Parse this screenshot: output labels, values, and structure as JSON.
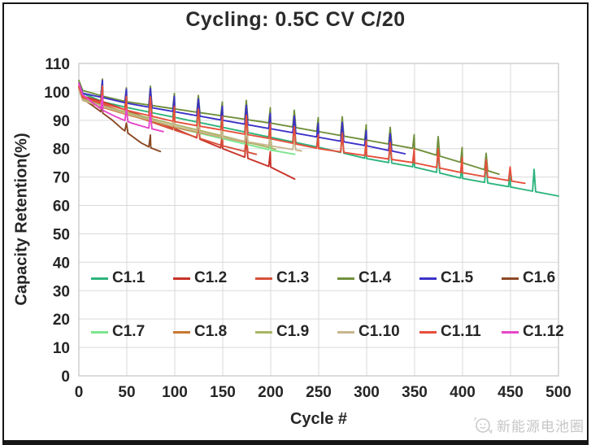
{
  "title": "Cycling: 0.5C CV C/20",
  "watermark": {
    "text": "新能源电池圈"
  },
  "style": {
    "grid_color": "#d9d9d9",
    "plot_border_color": "#c4c4c4",
    "axis_text_color": "#262626",
    "frame_color": "#161616",
    "watermark_color": "#c6c6c6"
  },
  "chart_data": {
    "type": "line",
    "title": "Cycling: 0.5C CV C/20",
    "xlabel": "Cycle #",
    "ylabel": "Capacity Retention(%)",
    "xlim": [
      0,
      500
    ],
    "ylim": [
      0,
      110
    ],
    "x_ticks": [
      0,
      50,
      100,
      150,
      200,
      250,
      300,
      350,
      400,
      450,
      500
    ],
    "y_ticks": [
      0,
      10,
      20,
      30,
      40,
      50,
      60,
      70,
      80,
      90,
      100,
      110
    ],
    "grid": true,
    "legend_position": "inside lower-left, two rows of six",
    "checkup_spike_interval_cycles": 25,
    "note": "Capacity fade curves with periodic C/20 check-up spikes every ~25 cycles",
    "series": [
      {
        "name": "C1.1",
        "color": "#2eb47e",
        "spike_height": 7,
        "points": [
          [
            0,
            103
          ],
          [
            4,
            99.5
          ],
          [
            25,
            96.5
          ],
          [
            50,
            94.5
          ],
          [
            100,
            91
          ],
          [
            150,
            87.5
          ],
          [
            200,
            84
          ],
          [
            250,
            80.5
          ],
          [
            300,
            76.5
          ],
          [
            350,
            73.5
          ],
          [
            400,
            69.5
          ],
          [
            450,
            66.5
          ],
          [
            500,
            63.3
          ]
        ]
      },
      {
        "name": "C1.2",
        "color": "#c83228",
        "spike_height": 6,
        "points": [
          [
            0,
            102
          ],
          [
            4,
            98.5
          ],
          [
            25,
            96.5
          ],
          [
            50,
            93.5
          ],
          [
            100,
            87
          ],
          [
            150,
            80
          ],
          [
            200,
            73.5
          ],
          [
            225,
            69.3
          ]
        ]
      },
      {
        "name": "C1.3",
        "color": "#d8503c",
        "spike_height": 5,
        "points": [
          [
            0,
            101.5
          ],
          [
            4,
            98
          ],
          [
            25,
            95.5
          ],
          [
            50,
            92.5
          ],
          [
            100,
            86.5
          ],
          [
            150,
            81
          ],
          [
            185,
            78
          ]
        ]
      },
      {
        "name": "C1.4",
        "color": "#71903c",
        "spike_height": 6,
        "points": [
          [
            0,
            104
          ],
          [
            4,
            100.5
          ],
          [
            25,
            98.5
          ],
          [
            50,
            96.5
          ],
          [
            100,
            94
          ],
          [
            150,
            91.5
          ],
          [
            200,
            89
          ],
          [
            250,
            86
          ],
          [
            300,
            83
          ],
          [
            350,
            80
          ],
          [
            400,
            75
          ],
          [
            438,
            71
          ]
        ]
      },
      {
        "name": "C1.5",
        "color": "#3c32c8",
        "spike_height": 6,
        "points": [
          [
            0,
            103
          ],
          [
            4,
            99.5
          ],
          [
            25,
            98
          ],
          [
            50,
            96
          ],
          [
            100,
            93
          ],
          [
            150,
            90
          ],
          [
            200,
            87
          ],
          [
            250,
            84
          ],
          [
            300,
            81
          ],
          [
            340,
            78.2
          ]
        ]
      },
      {
        "name": "C1.6",
        "color": "#8c4a26",
        "spike_height": 4,
        "points": [
          [
            0,
            101
          ],
          [
            4,
            97.5
          ],
          [
            15,
            95
          ],
          [
            25,
            92.5
          ],
          [
            35,
            90
          ],
          [
            45,
            87
          ],
          [
            55,
            84.5
          ],
          [
            65,
            82
          ],
          [
            75,
            80.3
          ],
          [
            85,
            79
          ]
        ]
      },
      {
        "name": "C1.7",
        "color": "#7ce68e",
        "spike_height": 7,
        "points": [
          [
            0,
            102
          ],
          [
            4,
            97.5
          ],
          [
            25,
            95
          ],
          [
            50,
            92.5
          ],
          [
            100,
            87.5
          ],
          [
            150,
            83.5
          ],
          [
            200,
            79.5
          ],
          [
            225,
            78
          ]
        ]
      },
      {
        "name": "C1.8",
        "color": "#c8782e",
        "spike_height": 6,
        "points": [
          [
            0,
            101
          ],
          [
            4,
            97
          ],
          [
            25,
            94.5
          ],
          [
            50,
            92
          ],
          [
            100,
            87.5
          ],
          [
            150,
            84
          ],
          [
            192,
            81
          ]
        ]
      },
      {
        "name": "C1.9",
        "color": "#aab464",
        "spike_height": 5,
        "points": [
          [
            0,
            102
          ],
          [
            4,
            97.5
          ],
          [
            25,
            95
          ],
          [
            50,
            92.8
          ],
          [
            100,
            88.5
          ],
          [
            150,
            84.5
          ],
          [
            205,
            79.8
          ]
        ]
      },
      {
        "name": "C1.10",
        "color": "#c9b68e",
        "spike_height": 4,
        "points": [
          [
            0,
            101
          ],
          [
            4,
            97
          ],
          [
            25,
            94.8
          ],
          [
            50,
            92.3
          ],
          [
            100,
            87.8
          ],
          [
            150,
            84
          ],
          [
            200,
            81
          ],
          [
            232,
            79.2
          ]
        ]
      },
      {
        "name": "C1.11",
        "color": "#e6503c",
        "spike_height": 6,
        "points": [
          [
            0,
            102
          ],
          [
            4,
            98
          ],
          [
            25,
            96
          ],
          [
            50,
            93.5
          ],
          [
            100,
            89.5
          ],
          [
            150,
            86.5
          ],
          [
            200,
            83.5
          ],
          [
            250,
            80
          ],
          [
            300,
            77.5
          ],
          [
            350,
            75
          ],
          [
            400,
            71.5
          ],
          [
            465,
            67.8
          ]
        ]
      },
      {
        "name": "C1.12",
        "color": "#e646c8",
        "spike_height": 5,
        "points": [
          [
            0,
            103
          ],
          [
            4,
            99
          ],
          [
            15,
            96
          ],
          [
            25,
            93.5
          ],
          [
            40,
            91
          ],
          [
            55,
            89
          ],
          [
            70,
            87.5
          ],
          [
            88,
            86
          ]
        ]
      }
    ]
  }
}
